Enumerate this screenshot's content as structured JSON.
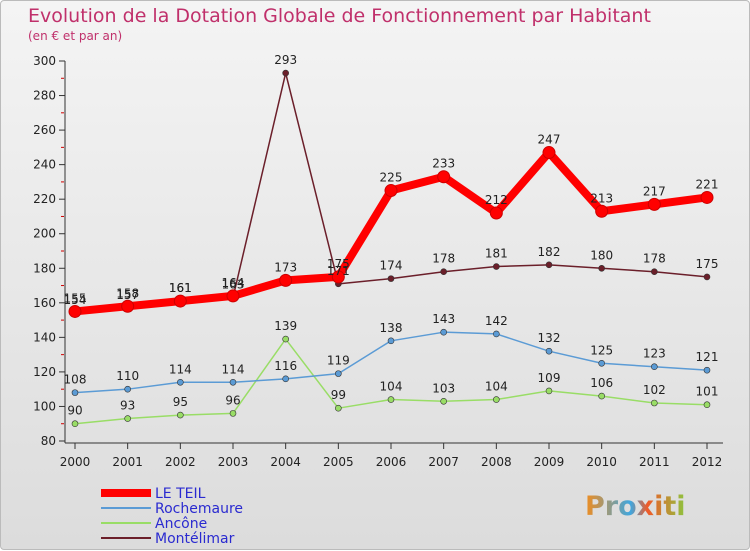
{
  "chart_data": {
    "type": "line",
    "title": "Evolution de la Dotation Globale de Fonctionnement par Habitant",
    "subtitle": "(en € et par an)",
    "x": [
      "2000",
      "2001",
      "2002",
      "2003",
      "2004",
      "2005",
      "2006",
      "2007",
      "2008",
      "2009",
      "2010",
      "2011",
      "2012"
    ],
    "ylim": [
      80,
      300
    ],
    "yticks": [
      80,
      100,
      120,
      140,
      160,
      180,
      200,
      220,
      240,
      260,
      280,
      300
    ],
    "grid": false,
    "legend_position": "bottom-left",
    "series": [
      {
        "name": "LE TEIL",
        "color": "#ff0000",
        "values": [
          155,
          158,
          161,
          164,
          173,
          175,
          225,
          233,
          212,
          247,
          213,
          217,
          221
        ]
      },
      {
        "name": "Rochemaure",
        "color": "#5b9bd5",
        "values": [
          108,
          110,
          114,
          114,
          116,
          119,
          138,
          143,
          142,
          132,
          125,
          123,
          121
        ]
      },
      {
        "name": "Ancône",
        "color": "#99dd66",
        "values": [
          90,
          93,
          95,
          96,
          139,
          99,
          104,
          103,
          104,
          109,
          106,
          102,
          101
        ]
      },
      {
        "name": "Montélimar",
        "color": "#6b1f2a",
        "values": [
          154,
          157,
          161,
          163,
          293,
          171,
          174,
          178,
          181,
          182,
          180,
          178,
          175
        ]
      }
    ]
  },
  "brand": {
    "logo_text": "Proxiti"
  }
}
